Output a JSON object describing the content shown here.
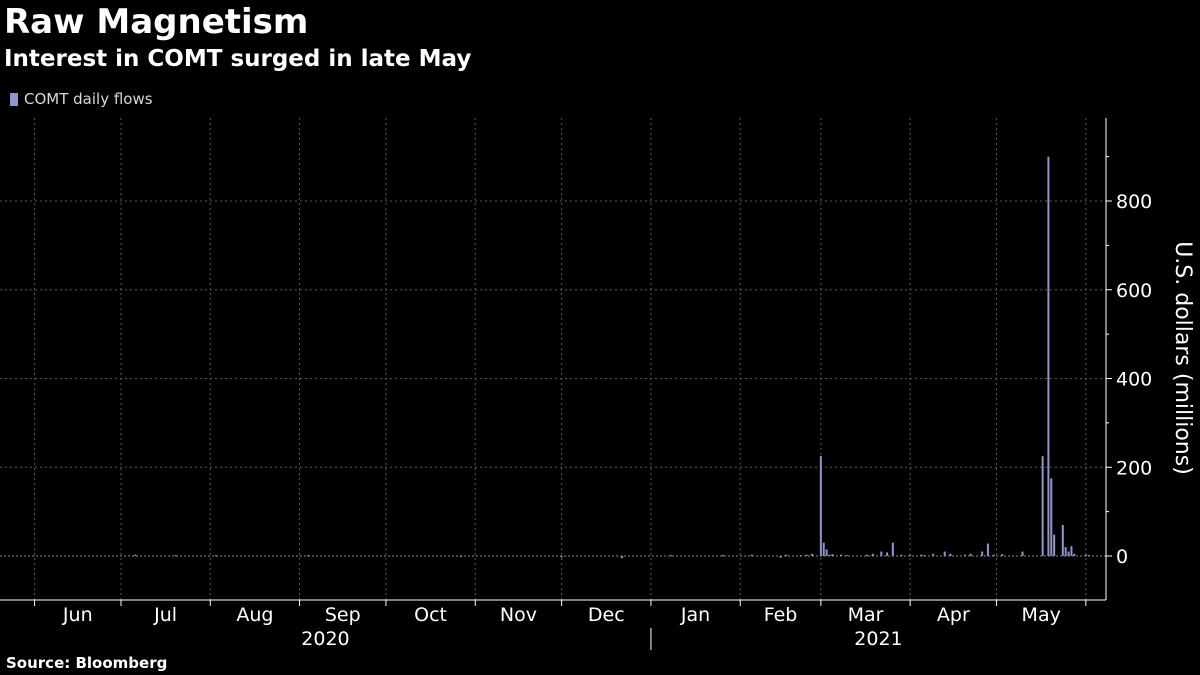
{
  "title": "Raw Magnetism",
  "subtitle": "Interest in COMT surged in late May",
  "source": "Source: Bloomberg",
  "chart_data": {
    "type": "bar",
    "legend": [
      "COMT daily flows"
    ],
    "ylabel": "U.S. dollars (millions)",
    "ylim": [
      -100,
      1000
    ],
    "yticks": [
      0,
      200,
      400,
      600,
      800
    ],
    "grid": true,
    "x_range": [
      "2020-05-20",
      "2021-06-08"
    ],
    "x_month_labels": [
      "Jun",
      "Jul",
      "Aug",
      "Sep",
      "Oct",
      "Nov",
      "Dec",
      "Jan",
      "Feb",
      "Mar",
      "Apr",
      "May"
    ],
    "x_year_labels": [
      "2020",
      "2021"
    ],
    "series": [
      {
        "name": "COMT daily flows",
        "color": "#8e97c8",
        "x": [
          "2020-07-06",
          "2020-07-20",
          "2020-08-03",
          "2020-09-04",
          "2020-10-27",
          "2020-12-01",
          "2020-12-22",
          "2021-01-08",
          "2021-01-26",
          "2021-02-05",
          "2021-02-15",
          "2021-02-17",
          "2021-02-22",
          "2021-02-24",
          "2021-02-26",
          "2021-03-01",
          "2021-03-02",
          "2021-03-03",
          "2021-03-04",
          "2021-03-05",
          "2021-03-08",
          "2021-03-10",
          "2021-03-17",
          "2021-03-19",
          "2021-03-22",
          "2021-03-24",
          "2021-03-26",
          "2021-03-29",
          "2021-04-01",
          "2021-04-05",
          "2021-04-06",
          "2021-04-09",
          "2021-04-13",
          "2021-04-15",
          "2021-04-20",
          "2021-04-22",
          "2021-04-26",
          "2021-04-28",
          "2021-04-30",
          "2021-05-03",
          "2021-05-10",
          "2021-05-17",
          "2021-05-19",
          "2021-05-20",
          "2021-05-21",
          "2021-05-24",
          "2021-05-25",
          "2021-05-26",
          "2021-05-27",
          "2021-05-28",
          "2021-06-01",
          "2021-06-02"
        ],
        "values": [
          3,
          2,
          2,
          2,
          -2,
          -3,
          -5,
          2,
          2,
          3,
          -4,
          3,
          2,
          3,
          5,
          225,
          30,
          15,
          3,
          4,
          3,
          2,
          3,
          5,
          10,
          8,
          30,
          3,
          2,
          3,
          2,
          5,
          10,
          5,
          3,
          5,
          10,
          28,
          3,
          4,
          10,
          225,
          900,
          175,
          48,
          70,
          20,
          10,
          22,
          5,
          3,
          2
        ]
      }
    ]
  }
}
